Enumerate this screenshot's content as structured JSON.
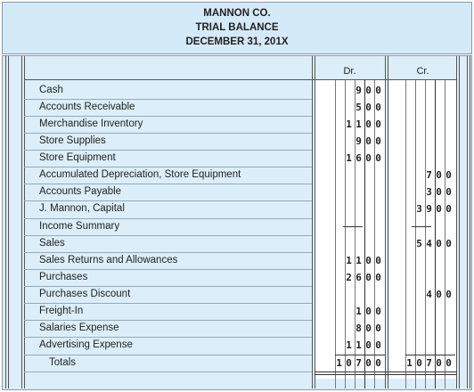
{
  "header": {
    "company": "MANNON CO.",
    "title": "TRIAL BALANCE",
    "date": "DECEMBER 31, 201X"
  },
  "columns": {
    "debit": "Dr.",
    "credit": "Cr."
  },
  "rows": [
    {
      "account": "Cash",
      "debit": 900,
      "credit": null
    },
    {
      "account": "Accounts Receivable",
      "debit": 500,
      "credit": null
    },
    {
      "account": "Merchandise Inventory",
      "debit": 1100,
      "credit": null
    },
    {
      "account": "Store Supplies",
      "debit": 900,
      "credit": null
    },
    {
      "account": "Store Equipment",
      "debit": 1600,
      "credit": null
    },
    {
      "account": "Accumulated Depreciation, Store Equipment",
      "debit": null,
      "credit": 700
    },
    {
      "account": "Accounts Payable",
      "debit": null,
      "credit": 300
    },
    {
      "account": "J. Mannon, Capital",
      "debit": null,
      "credit": 3900
    },
    {
      "account": "Income Summary",
      "debit": null,
      "credit": null
    },
    {
      "account": "Sales",
      "debit": null,
      "credit": 5400
    },
    {
      "account": "Sales Returns and Allowances",
      "debit": 1100,
      "credit": null
    },
    {
      "account": "Purchases",
      "debit": 2600,
      "credit": null
    },
    {
      "account": "Purchases Discount",
      "debit": null,
      "credit": 400
    },
    {
      "account": "Freight-In",
      "debit": 100,
      "credit": null
    },
    {
      "account": "Salaries Expense",
      "debit": 800,
      "credit": null
    },
    {
      "account": "Advertising Expense",
      "debit": 1100,
      "credit": null
    }
  ],
  "totals": {
    "label": "Totals",
    "debit": 10700,
    "credit": 10700
  }
}
